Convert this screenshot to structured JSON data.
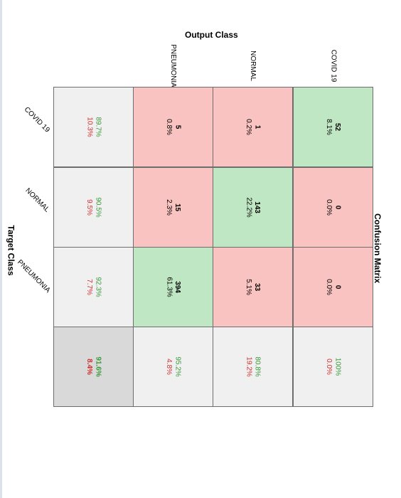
{
  "chart_data": {
    "type": "table",
    "title": "Confusion Matrix",
    "xlabel": "Target Class",
    "ylabel": "Output Class",
    "classes": [
      "COVID 19",
      "NORMAL",
      "PNEUMONIA"
    ],
    "matrix": [
      [
        {
          "count": "52",
          "pct": "8.1%"
        },
        {
          "count": "0",
          "pct": "0.0%"
        },
        {
          "count": "0",
          "pct": "0.0%"
        }
      ],
      [
        {
          "count": "1",
          "pct": "0.2%"
        },
        {
          "count": "143",
          "pct": "22.2%"
        },
        {
          "count": "33",
          "pct": "5.1%"
        }
      ],
      [
        {
          "count": "5",
          "pct": "0.8%"
        },
        {
          "count": "15",
          "pct": "2.3%"
        },
        {
          "count": "394",
          "pct": "61.3%"
        }
      ]
    ],
    "row_summary": [
      {
        "good": "100%",
        "bad": "0.0%"
      },
      {
        "good": "80.8%",
        "bad": "19.2%"
      },
      {
        "good": "95.2%",
        "bad": "4.8%"
      }
    ],
    "col_summary": [
      {
        "good": "89.7%",
        "bad": "10.3%"
      },
      {
        "good": "90.5%",
        "bad": "9.5%"
      },
      {
        "good": "92.3%",
        "bad": "7.7%"
      }
    ],
    "overall": {
      "good": "91.6%",
      "bad": "8.4%"
    },
    "colors": {
      "correct": "#c0e7c3",
      "incorrect": "#f8c3c0",
      "summary": "#f0f0f0",
      "overall": "#d9d9d9",
      "good_text": "#3a9a3a",
      "bad_text": "#d03030"
    }
  }
}
